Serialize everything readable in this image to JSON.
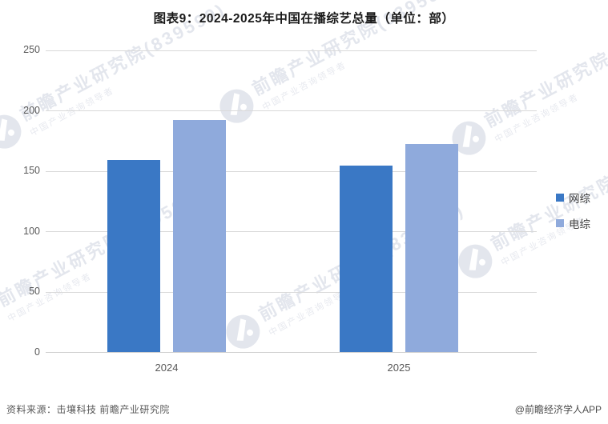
{
  "title": "图表9：2024-2025年中国在播综艺总量（单位：部）",
  "chart_data": {
    "type": "bar",
    "title": "图表9：2024-2025年中国在播综艺总量（单位：部）",
    "unit": "部",
    "categories": [
      "2024",
      "2025"
    ],
    "series": [
      {
        "name": "网综",
        "key": "wangzong",
        "color": "#3A78C5",
        "values": [
          159,
          154
        ]
      },
      {
        "name": "电综",
        "key": "dianzong",
        "color": "#8FAADC",
        "values": [
          192,
          172
        ]
      }
    ],
    "xlabel": "",
    "ylabel": "",
    "ylim": [
      0,
      250
    ],
    "yticks": [
      0,
      50,
      100,
      150,
      200,
      250
    ],
    "grid": true,
    "legend_position": "right-middle"
  },
  "legend": {
    "items": [
      {
        "label": "网综",
        "color": "#3A78C5"
      },
      {
        "label": "电综",
        "color": "#8FAADC"
      }
    ]
  },
  "footer": {
    "source": "资料来源：击壤科技  前瞻产业研究院",
    "credit": "@前瞻经济学人APP"
  },
  "watermark": {
    "main": "前瞻产业研究院(839599)",
    "sub": "中国产业咨询领导者"
  },
  "colors": {
    "grid": "#D9D9D9",
    "axis": "#CFCFCF",
    "tick_text": "#595959",
    "title_text": "#1A1A1A",
    "watermark": "#E3E6ED",
    "background": "#FFFFFF"
  }
}
